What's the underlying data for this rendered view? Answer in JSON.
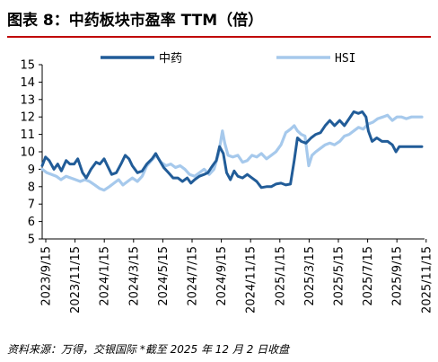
{
  "title": "图表 8：中药板块市盈率 TTM（倍）",
  "source": "资料来源：万得，交银国际  *截至 2025 年 12 月 2 日收盘",
  "colors": {
    "zy": "#215c98",
    "hsi": "#a6c9ec",
    "title_rule": "#c00000"
  },
  "chart_data": {
    "type": "line",
    "ylim": [
      5,
      15
    ],
    "yticks": [
      5,
      6,
      7,
      8,
      9,
      10,
      11,
      12,
      13,
      14,
      15
    ],
    "ytick_labels": [
      "5",
      "6",
      "7",
      "8",
      "9",
      "10",
      "11",
      "12",
      "13",
      "14",
      "15"
    ],
    "x_range": [
      "2023-09-15",
      "2025-12-02"
    ],
    "xtick_labels": [
      "2023/9/15",
      "2023/11/15",
      "2024/1/15",
      "2024/3/15",
      "2024/5/15",
      "2024/7/15",
      "2024/9/15",
      "2024/11/15",
      "2025/1/15",
      "2025/3/15",
      "2025/5/15",
      "2025/7/15",
      "2025/9/15",
      "2025/11/15"
    ],
    "legend": [
      "中药",
      "HSI"
    ],
    "legend_position": "top",
    "series": [
      {
        "name": "中药",
        "color": "#215c98",
        "points": [
          [
            "2023-09-15",
            9.2
          ],
          [
            "2023-09-22",
            9.7
          ],
          [
            "2023-09-30",
            9.5
          ],
          [
            "2023-10-10",
            9.0
          ],
          [
            "2023-10-18",
            9.3
          ],
          [
            "2023-10-26",
            8.9
          ],
          [
            "2023-11-05",
            9.5
          ],
          [
            "2023-11-13",
            9.3
          ],
          [
            "2023-11-22",
            9.3
          ],
          [
            "2023-11-30",
            9.6
          ],
          [
            "2023-12-10",
            8.8
          ],
          [
            "2023-12-18",
            8.5
          ],
          [
            "2023-12-28",
            9.0
          ],
          [
            "2024-01-08",
            9.4
          ],
          [
            "2024-01-16",
            9.3
          ],
          [
            "2024-01-25",
            9.6
          ],
          [
            "2024-02-01",
            9.2
          ],
          [
            "2024-02-10",
            8.7
          ],
          [
            "2024-02-20",
            8.8
          ],
          [
            "2024-03-01",
            9.3
          ],
          [
            "2024-03-10",
            9.8
          ],
          [
            "2024-03-18",
            9.6
          ],
          [
            "2024-03-25",
            9.2
          ],
          [
            "2024-04-05",
            8.8
          ],
          [
            "2024-04-15",
            8.9
          ],
          [
            "2024-04-25",
            9.3
          ],
          [
            "2024-05-06",
            9.6
          ],
          [
            "2024-05-14",
            9.9
          ],
          [
            "2024-05-20",
            9.6
          ],
          [
            "2024-05-31",
            9.1
          ],
          [
            "2024-06-10",
            8.8
          ],
          [
            "2024-06-20",
            8.5
          ],
          [
            "2024-06-30",
            8.5
          ],
          [
            "2024-07-10",
            8.3
          ],
          [
            "2024-07-20",
            8.5
          ],
          [
            "2024-07-28",
            8.2
          ],
          [
            "2024-08-05",
            8.4
          ],
          [
            "2024-08-15",
            8.6
          ],
          [
            "2024-08-25",
            8.7
          ],
          [
            "2024-09-02",
            8.8
          ],
          [
            "2024-09-12",
            9.2
          ],
          [
            "2024-09-20",
            9.5
          ],
          [
            "2024-09-27",
            10.3
          ],
          [
            "2024-10-05",
            9.9
          ],
          [
            "2024-10-12",
            8.8
          ],
          [
            "2024-10-20",
            8.4
          ],
          [
            "2024-10-28",
            8.9
          ],
          [
            "2024-11-05",
            8.6
          ],
          [
            "2024-11-15",
            8.5
          ],
          [
            "2024-11-25",
            8.7
          ],
          [
            "2024-12-05",
            8.5
          ],
          [
            "2024-12-15",
            8.3
          ],
          [
            "2024-12-25",
            7.95
          ],
          [
            "2025-01-05",
            8.0
          ],
          [
            "2025-01-15",
            8.0
          ],
          [
            "2025-01-25",
            8.15
          ],
          [
            "2025-02-05",
            8.2
          ],
          [
            "2025-02-15",
            8.1
          ],
          [
            "2025-02-25",
            8.15
          ],
          [
            "2025-03-05",
            9.5
          ],
          [
            "2025-03-12",
            10.8
          ],
          [
            "2025-03-20",
            10.6
          ],
          [
            "2025-03-30",
            10.5
          ],
          [
            "2025-04-10",
            10.8
          ],
          [
            "2025-04-20",
            11.0
          ],
          [
            "2025-04-30",
            11.1
          ],
          [
            "2025-05-10",
            11.5
          ],
          [
            "2025-05-20",
            11.8
          ],
          [
            "2025-05-30",
            11.5
          ],
          [
            "2025-06-10",
            11.8
          ],
          [
            "2025-06-20",
            11.5
          ],
          [
            "2025-06-30",
            11.9
          ],
          [
            "2025-07-10",
            12.3
          ],
          [
            "2025-07-20",
            12.2
          ],
          [
            "2025-07-28",
            12.3
          ],
          [
            "2025-08-05",
            12.0
          ],
          [
            "2025-08-10",
            11.2
          ],
          [
            "2025-08-18",
            10.6
          ],
          [
            "2025-08-28",
            10.8
          ],
          [
            "2025-09-08",
            10.6
          ],
          [
            "2025-09-20",
            10.6
          ],
          [
            "2025-09-30",
            10.4
          ],
          [
            "2025-10-08",
            10.0
          ],
          [
            "2025-10-15",
            10.3
          ],
          [
            "2025-11-01",
            10.3
          ],
          [
            "2025-11-20",
            10.3
          ],
          [
            "2025-12-02",
            10.3
          ]
        ]
      },
      {
        "name": "HSI",
        "color": "#a6c9ec",
        "points": [
          [
            "2023-09-15",
            9.0
          ],
          [
            "2023-09-25",
            8.8
          ],
          [
            "2023-10-05",
            8.7
          ],
          [
            "2023-10-15",
            8.6
          ],
          [
            "2023-10-25",
            8.4
          ],
          [
            "2023-11-05",
            8.6
          ],
          [
            "2023-11-15",
            8.5
          ],
          [
            "2023-11-25",
            8.4
          ],
          [
            "2023-12-05",
            8.3
          ],
          [
            "2023-12-15",
            8.4
          ],
          [
            "2023-12-25",
            8.3
          ],
          [
            "2024-01-05",
            8.1
          ],
          [
            "2024-01-15",
            7.9
          ],
          [
            "2024-01-25",
            7.8
          ],
          [
            "2024-02-05",
            8.0
          ],
          [
            "2024-02-15",
            8.2
          ],
          [
            "2024-02-25",
            8.4
          ],
          [
            "2024-03-05",
            8.1
          ],
          [
            "2024-03-15",
            8.3
          ],
          [
            "2024-03-25",
            8.5
          ],
          [
            "2024-04-05",
            8.3
          ],
          [
            "2024-04-15",
            8.6
          ],
          [
            "2024-04-25",
            9.2
          ],
          [
            "2024-05-05",
            9.5
          ],
          [
            "2024-05-15",
            9.8
          ],
          [
            "2024-05-25",
            9.4
          ],
          [
            "2024-06-05",
            9.2
          ],
          [
            "2024-06-15",
            9.3
          ],
          [
            "2024-06-25",
            9.1
          ],
          [
            "2024-07-05",
            9.2
          ],
          [
            "2024-07-15",
            9.0
          ],
          [
            "2024-07-25",
            8.7
          ],
          [
            "2024-08-05",
            8.6
          ],
          [
            "2024-08-15",
            8.8
          ],
          [
            "2024-08-25",
            9.0
          ],
          [
            "2024-09-05",
            8.7
          ],
          [
            "2024-09-15",
            9.0
          ],
          [
            "2024-09-25",
            9.9
          ],
          [
            "2024-10-03",
            11.2
          ],
          [
            "2024-10-08",
            10.5
          ],
          [
            "2024-10-15",
            9.8
          ],
          [
            "2024-10-25",
            9.7
          ],
          [
            "2024-11-05",
            9.8
          ],
          [
            "2024-11-15",
            9.4
          ],
          [
            "2024-11-25",
            9.5
          ],
          [
            "2024-12-05",
            9.8
          ],
          [
            "2024-12-15",
            9.7
          ],
          [
            "2024-12-25",
            9.9
          ],
          [
            "2025-01-05",
            9.6
          ],
          [
            "2025-01-15",
            9.8
          ],
          [
            "2025-01-25",
            10.0
          ],
          [
            "2025-02-05",
            10.4
          ],
          [
            "2025-02-15",
            11.1
          ],
          [
            "2025-02-25",
            11.3
          ],
          [
            "2025-03-05",
            11.5
          ],
          [
            "2025-03-12",
            11.2
          ],
          [
            "2025-03-20",
            11.0
          ],
          [
            "2025-03-28",
            10.9
          ],
          [
            "2025-04-05",
            9.2
          ],
          [
            "2025-04-12",
            9.8
          ],
          [
            "2025-04-20",
            10.0
          ],
          [
            "2025-04-30",
            10.2
          ],
          [
            "2025-05-10",
            10.4
          ],
          [
            "2025-05-20",
            10.5
          ],
          [
            "2025-05-30",
            10.4
          ],
          [
            "2025-06-10",
            10.6
          ],
          [
            "2025-06-20",
            10.9
          ],
          [
            "2025-06-30",
            11.0
          ],
          [
            "2025-07-10",
            11.2
          ],
          [
            "2025-07-20",
            11.4
          ],
          [
            "2025-07-30",
            11.3
          ],
          [
            "2025-08-10",
            11.6
          ],
          [
            "2025-08-20",
            11.7
          ],
          [
            "2025-08-30",
            11.9
          ],
          [
            "2025-09-10",
            12.0
          ],
          [
            "2025-09-20",
            12.1
          ],
          [
            "2025-09-30",
            11.8
          ],
          [
            "2025-10-10",
            12.0
          ],
          [
            "2025-10-20",
            12.0
          ],
          [
            "2025-10-30",
            11.9
          ],
          [
            "2025-11-10",
            12.0
          ],
          [
            "2025-11-20",
            12.0
          ],
          [
            "2025-12-02",
            12.0
          ]
        ]
      }
    ]
  }
}
